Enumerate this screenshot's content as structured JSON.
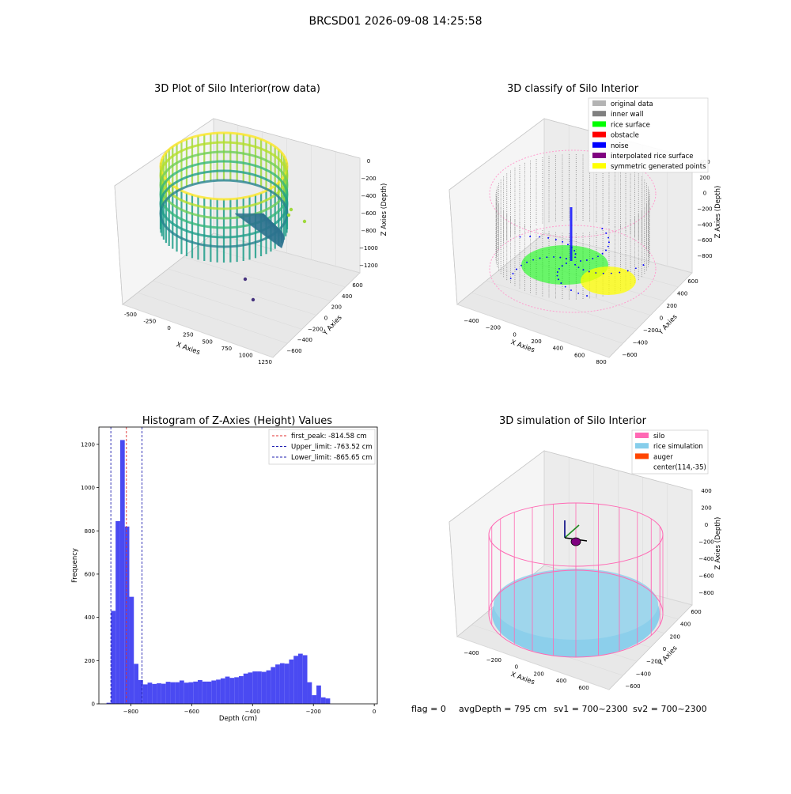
{
  "suptitle": "BRCSD01 2026-09-08 14:25:58",
  "footer": {
    "flag": "flag = 0",
    "avg_depth": "avgDepth = 795 cm",
    "sv1": "sv1 = 700~2300",
    "sv2": "sv2 = 700~2300"
  },
  "colors": {
    "hist_bar": "#4a4af2",
    "first_peak": "#e03030",
    "limits": "#2020b0",
    "original": "#b4b4b4",
    "inner_wall": "#808080",
    "rice_surface": "#00ff00",
    "obstacle": "#ff0000",
    "noise": "#0000ff",
    "interpolated": "#800080",
    "symmetric": "#ffff00",
    "silo": "#ff69b4",
    "rice_sim": "#87ceeb",
    "auger": "#ff4500"
  },
  "plots": {
    "raw": {
      "title": "3D Plot of Silo Interior(row data)",
      "xlabel": "X Axies",
      "ylabel": "Y Axies",
      "zlabel": "Z Axies (Depth)",
      "xticks": [
        "-500",
        "-250",
        "0",
        "250",
        "500",
        "750",
        "1000",
        "1250"
      ],
      "yticks": [
        "600",
        "400",
        "200",
        "0",
        "−200",
        "−400",
        "−600"
      ],
      "zticks": [
        "0",
        "−200",
        "−400",
        "−600",
        "−800",
        "−1000",
        "−1200"
      ]
    },
    "classify": {
      "title": "3D classify of Silo Interior",
      "xlabel": "X Axies",
      "ylabel": "Y Axies",
      "zlabel": "Z Axies (Depth)",
      "xticks": [
        "−400",
        "−200",
        "0",
        "200",
        "400",
        "600",
        "800"
      ],
      "yticks": [
        "600",
        "400",
        "200",
        "0",
        "−200",
        "−400",
        "−600"
      ],
      "zticks": [
        "400",
        "200",
        "0",
        "−200",
        "−400",
        "−600",
        "−800"
      ],
      "legend": [
        "original data",
        "inner wall",
        "rice surface",
        "obstacle",
        "noise",
        "interpolated rice surface",
        "symmetric generated points"
      ]
    },
    "simulation": {
      "title": "3D simulation of Silo Interior",
      "xlabel": "X Axies",
      "ylabel": "Y Axies",
      "zlabel": "Z Axies (Depth)",
      "xticks": [
        "−400",
        "−200",
        "0",
        "200",
        "400",
        "600"
      ],
      "yticks": [
        "600",
        "400",
        "200",
        "0",
        "−200",
        "−400",
        "−600"
      ],
      "zticks": [
        "400",
        "200",
        "0",
        "−200",
        "−400",
        "−600",
        "−800"
      ],
      "legend": [
        "silo",
        "rice simulation",
        "auger",
        "center(114,-35)"
      ]
    }
  },
  "chart_data": {
    "type": "bar",
    "title": "Histogram of Z-Axies (Height) Values",
    "xlabel": "Depth (cm)",
    "ylabel": "Frequency",
    "xlim": [
      -905,
      10
    ],
    "ylim": [
      0,
      1280
    ],
    "xticks": [
      -800,
      -600,
      -400,
      -200,
      0
    ],
    "xtick_labels": [
      "−800",
      "−600",
      "−400",
      "−200",
      "0"
    ],
    "yticks": [
      0,
      200,
      400,
      600,
      800,
      1000,
      1200
    ],
    "bin_start": -880,
    "bin_width": 15,
    "values": [
      5,
      430,
      845,
      1220,
      820,
      495,
      185,
      110,
      90,
      98,
      92,
      95,
      93,
      102,
      100,
      100,
      108,
      98,
      100,
      103,
      110,
      103,
      103,
      108,
      112,
      118,
      126,
      120,
      123,
      128,
      140,
      145,
      150,
      150,
      148,
      155,
      170,
      182,
      188,
      186,
      205,
      222,
      232,
      225,
      100,
      40,
      85,
      30,
      25
    ],
    "vlines": [
      {
        "label": "first_peak: -814.58 cm",
        "x": -814.58,
        "style": "first_peak"
      },
      {
        "label": "Upper_limit: -763.52 cm",
        "x": -763.52,
        "style": "limit"
      },
      {
        "label": "Lower_limit: -865.65 cm",
        "x": -865.65,
        "style": "limit"
      }
    ]
  }
}
